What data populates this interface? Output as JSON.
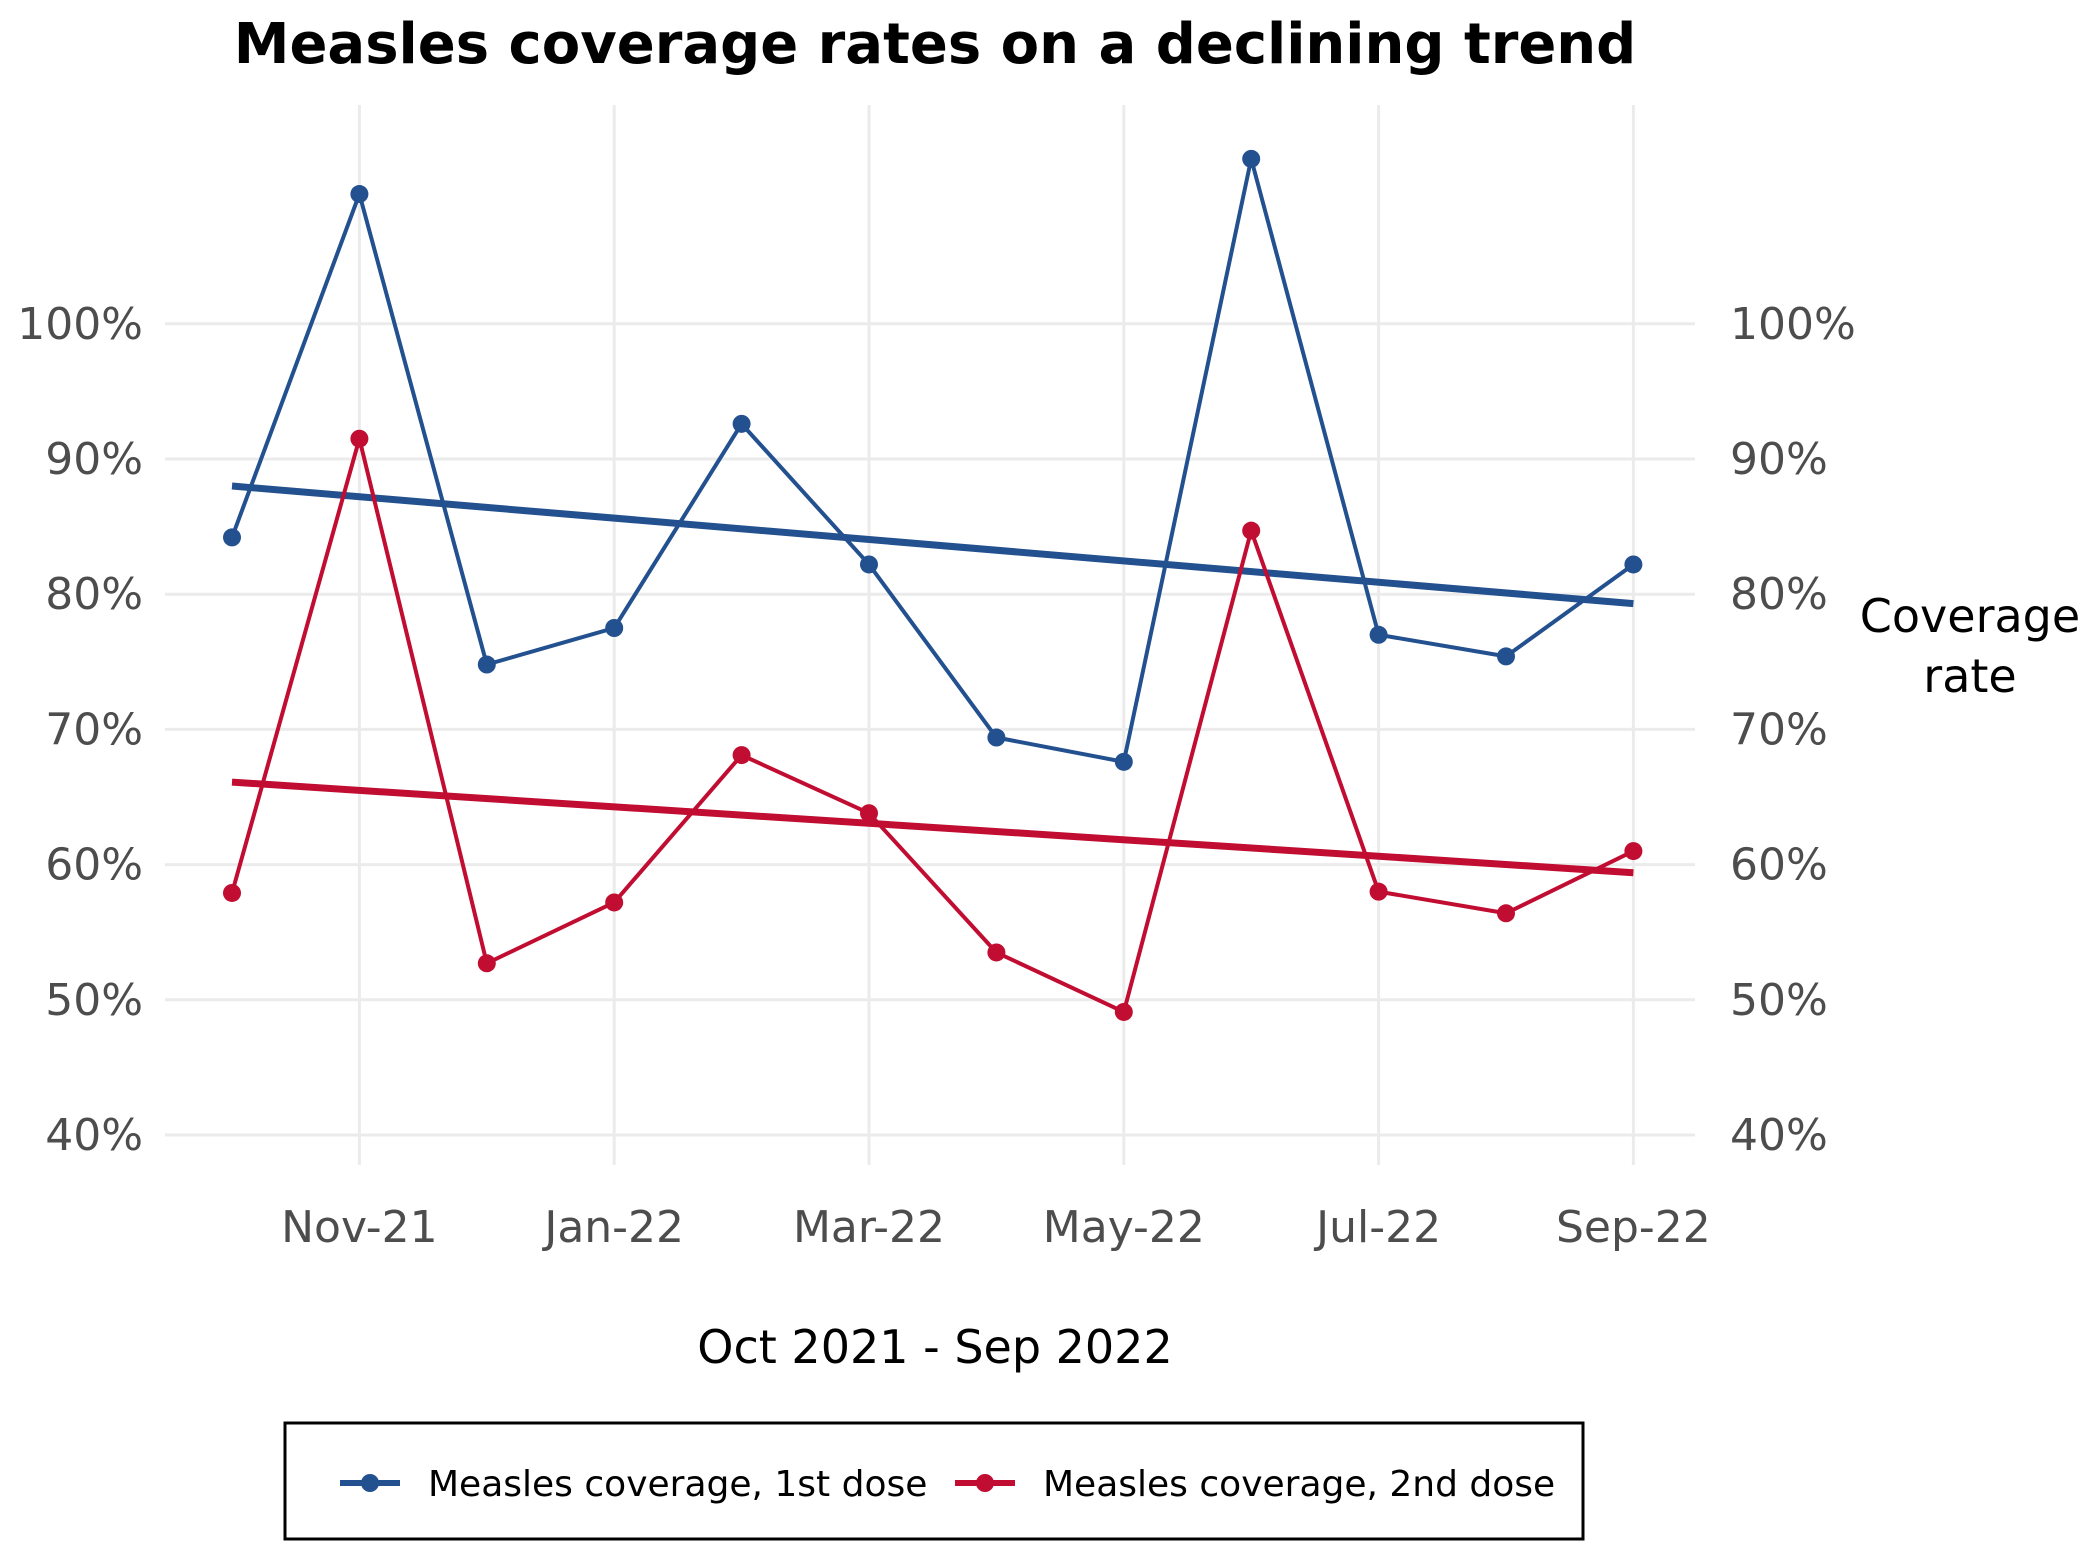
{
  "chart_data": {
    "type": "line",
    "title": "Measles coverage rates on a declining trend",
    "xlabel": "Oct 2021 - Sep 2022",
    "ylabel": "Coverage rate",
    "ylim": [
      0.365,
      1.125
    ],
    "x": [
      "Oct-21",
      "Nov-21",
      "Dec-21",
      "Jan-22",
      "Feb-22",
      "Mar-22",
      "Apr-22",
      "May-22",
      "Jun-22",
      "Jul-22",
      "Aug-22",
      "Sep-22"
    ],
    "x_tick_labels": [
      "Nov-21",
      "Jan-22",
      "Mar-22",
      "May-22",
      "Jul-22",
      "Sep-22"
    ],
    "y_ticks": [
      0.4,
      0.5,
      0.6,
      0.7,
      0.8,
      0.9,
      1.0
    ],
    "y_tick_labels": [
      "40%",
      "50%",
      "60%",
      "70%",
      "80%",
      "90%",
      "100%"
    ],
    "grid": true,
    "legend_position": "bottom",
    "series": [
      {
        "name": "Measles coverage, 1st dose",
        "color": "#23508f",
        "values": [
          0.842,
          1.096,
          0.748,
          0.775,
          0.926,
          0.822,
          0.694,
          0.676,
          1.122,
          0.77,
          0.754,
          0.822
        ],
        "trend": [
          0.88,
          0.793
        ]
      },
      {
        "name": "Measles coverage, 2nd dose",
        "color": "#c00d31",
        "values": [
          0.579,
          0.915,
          0.527,
          0.572,
          0.681,
          0.638,
          0.535,
          0.491,
          0.847,
          0.58,
          0.564,
          0.61
        ],
        "trend": [
          0.661,
          0.594
        ]
      }
    ]
  }
}
